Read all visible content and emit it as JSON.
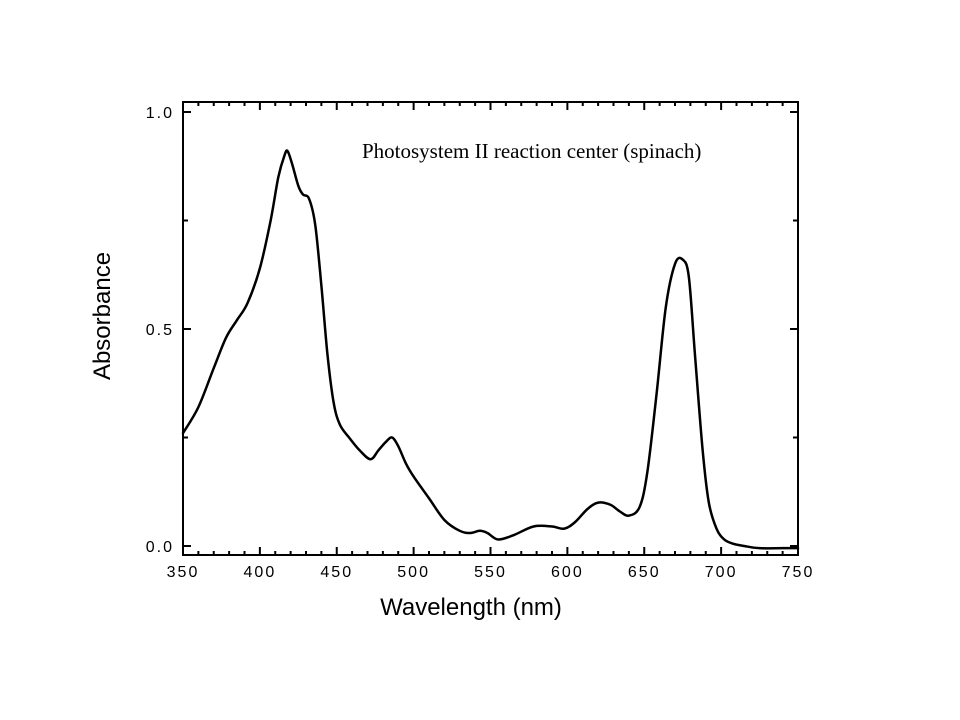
{
  "chart_data": {
    "type": "line",
    "annotation": "Photosystem II reaction center (spinach)",
    "xlabel": "Wavelength (nm)",
    "ylabel": "Absorbance",
    "xlim": [
      350,
      750
    ],
    "ylim": [
      0.0,
      1.0
    ],
    "x_ticks": [
      "350",
      "400",
      "450",
      "500",
      "550",
      "600",
      "650",
      "700",
      "750"
    ],
    "y_ticks": [
      "0.0",
      "0.5",
      "1.0"
    ],
    "grid": false,
    "series": [
      {
        "color": "#000000",
        "x": [
          350,
          360,
          370,
          378,
          385,
          392,
          400,
          407,
          412,
          416,
          418,
          421,
          425,
          428,
          432,
          436,
          440,
          444,
          448,
          452,
          458,
          465,
          472,
          477,
          482,
          486,
          490,
          495,
          500,
          510,
          520,
          530,
          537,
          543,
          548,
          555,
          565,
          578,
          590,
          598,
          605,
          613,
          620,
          628,
          634,
          640,
          647,
          652,
          658,
          664,
          670,
          675,
          679,
          683,
          688,
          692,
          697,
          702,
          708,
          715,
          725,
          740,
          750
        ],
        "y": [
          0.26,
          0.32,
          0.41,
          0.48,
          0.52,
          0.56,
          0.64,
          0.75,
          0.85,
          0.9,
          0.91,
          0.88,
          0.83,
          0.81,
          0.8,
          0.74,
          0.6,
          0.44,
          0.33,
          0.28,
          0.25,
          0.22,
          0.2,
          0.22,
          0.24,
          0.25,
          0.23,
          0.19,
          0.16,
          0.11,
          0.06,
          0.035,
          0.03,
          0.035,
          0.03,
          0.015,
          0.025,
          0.045,
          0.045,
          0.04,
          0.055,
          0.085,
          0.1,
          0.095,
          0.08,
          0.07,
          0.09,
          0.17,
          0.35,
          0.55,
          0.65,
          0.66,
          0.62,
          0.44,
          0.22,
          0.1,
          0.04,
          0.015,
          0.005,
          0.0,
          -0.005,
          -0.005,
          -0.005
        ]
      }
    ]
  }
}
